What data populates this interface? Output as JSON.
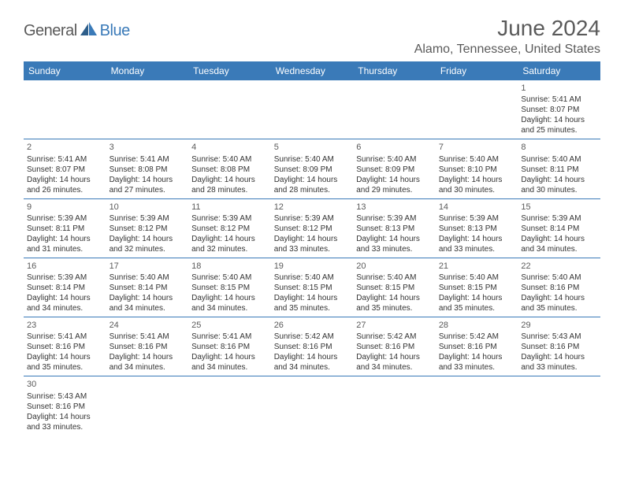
{
  "logo": {
    "general": "General",
    "blue": "Blue"
  },
  "title": "June 2024",
  "location": "Alamo, Tennessee, United States",
  "colors": {
    "header_bg": "#3a7ab8",
    "header_text": "#ffffff",
    "text": "#5a5a5a",
    "border": "#3a7ab8"
  },
  "day_headers": [
    "Sunday",
    "Monday",
    "Tuesday",
    "Wednesday",
    "Thursday",
    "Friday",
    "Saturday"
  ],
  "weeks": [
    [
      null,
      null,
      null,
      null,
      null,
      null,
      {
        "d": "1",
        "sr": "Sunrise: 5:41 AM",
        "ss": "Sunset: 8:07 PM",
        "dl": "Daylight: 14 hours and 25 minutes."
      }
    ],
    [
      {
        "d": "2",
        "sr": "Sunrise: 5:41 AM",
        "ss": "Sunset: 8:07 PM",
        "dl": "Daylight: 14 hours and 26 minutes."
      },
      {
        "d": "3",
        "sr": "Sunrise: 5:41 AM",
        "ss": "Sunset: 8:08 PM",
        "dl": "Daylight: 14 hours and 27 minutes."
      },
      {
        "d": "4",
        "sr": "Sunrise: 5:40 AM",
        "ss": "Sunset: 8:08 PM",
        "dl": "Daylight: 14 hours and 28 minutes."
      },
      {
        "d": "5",
        "sr": "Sunrise: 5:40 AM",
        "ss": "Sunset: 8:09 PM",
        "dl": "Daylight: 14 hours and 28 minutes."
      },
      {
        "d": "6",
        "sr": "Sunrise: 5:40 AM",
        "ss": "Sunset: 8:09 PM",
        "dl": "Daylight: 14 hours and 29 minutes."
      },
      {
        "d": "7",
        "sr": "Sunrise: 5:40 AM",
        "ss": "Sunset: 8:10 PM",
        "dl": "Daylight: 14 hours and 30 minutes."
      },
      {
        "d": "8",
        "sr": "Sunrise: 5:40 AM",
        "ss": "Sunset: 8:11 PM",
        "dl": "Daylight: 14 hours and 30 minutes."
      }
    ],
    [
      {
        "d": "9",
        "sr": "Sunrise: 5:39 AM",
        "ss": "Sunset: 8:11 PM",
        "dl": "Daylight: 14 hours and 31 minutes."
      },
      {
        "d": "10",
        "sr": "Sunrise: 5:39 AM",
        "ss": "Sunset: 8:12 PM",
        "dl": "Daylight: 14 hours and 32 minutes."
      },
      {
        "d": "11",
        "sr": "Sunrise: 5:39 AM",
        "ss": "Sunset: 8:12 PM",
        "dl": "Daylight: 14 hours and 32 minutes."
      },
      {
        "d": "12",
        "sr": "Sunrise: 5:39 AM",
        "ss": "Sunset: 8:12 PM",
        "dl": "Daylight: 14 hours and 33 minutes."
      },
      {
        "d": "13",
        "sr": "Sunrise: 5:39 AM",
        "ss": "Sunset: 8:13 PM",
        "dl": "Daylight: 14 hours and 33 minutes."
      },
      {
        "d": "14",
        "sr": "Sunrise: 5:39 AM",
        "ss": "Sunset: 8:13 PM",
        "dl": "Daylight: 14 hours and 33 minutes."
      },
      {
        "d": "15",
        "sr": "Sunrise: 5:39 AM",
        "ss": "Sunset: 8:14 PM",
        "dl": "Daylight: 14 hours and 34 minutes."
      }
    ],
    [
      {
        "d": "16",
        "sr": "Sunrise: 5:39 AM",
        "ss": "Sunset: 8:14 PM",
        "dl": "Daylight: 14 hours and 34 minutes."
      },
      {
        "d": "17",
        "sr": "Sunrise: 5:40 AM",
        "ss": "Sunset: 8:14 PM",
        "dl": "Daylight: 14 hours and 34 minutes."
      },
      {
        "d": "18",
        "sr": "Sunrise: 5:40 AM",
        "ss": "Sunset: 8:15 PM",
        "dl": "Daylight: 14 hours and 34 minutes."
      },
      {
        "d": "19",
        "sr": "Sunrise: 5:40 AM",
        "ss": "Sunset: 8:15 PM",
        "dl": "Daylight: 14 hours and 35 minutes."
      },
      {
        "d": "20",
        "sr": "Sunrise: 5:40 AM",
        "ss": "Sunset: 8:15 PM",
        "dl": "Daylight: 14 hours and 35 minutes."
      },
      {
        "d": "21",
        "sr": "Sunrise: 5:40 AM",
        "ss": "Sunset: 8:15 PM",
        "dl": "Daylight: 14 hours and 35 minutes."
      },
      {
        "d": "22",
        "sr": "Sunrise: 5:40 AM",
        "ss": "Sunset: 8:16 PM",
        "dl": "Daylight: 14 hours and 35 minutes."
      }
    ],
    [
      {
        "d": "23",
        "sr": "Sunrise: 5:41 AM",
        "ss": "Sunset: 8:16 PM",
        "dl": "Daylight: 14 hours and 35 minutes."
      },
      {
        "d": "24",
        "sr": "Sunrise: 5:41 AM",
        "ss": "Sunset: 8:16 PM",
        "dl": "Daylight: 14 hours and 34 minutes."
      },
      {
        "d": "25",
        "sr": "Sunrise: 5:41 AM",
        "ss": "Sunset: 8:16 PM",
        "dl": "Daylight: 14 hours and 34 minutes."
      },
      {
        "d": "26",
        "sr": "Sunrise: 5:42 AM",
        "ss": "Sunset: 8:16 PM",
        "dl": "Daylight: 14 hours and 34 minutes."
      },
      {
        "d": "27",
        "sr": "Sunrise: 5:42 AM",
        "ss": "Sunset: 8:16 PM",
        "dl": "Daylight: 14 hours and 34 minutes."
      },
      {
        "d": "28",
        "sr": "Sunrise: 5:42 AM",
        "ss": "Sunset: 8:16 PM",
        "dl": "Daylight: 14 hours and 33 minutes."
      },
      {
        "d": "29",
        "sr": "Sunrise: 5:43 AM",
        "ss": "Sunset: 8:16 PM",
        "dl": "Daylight: 14 hours and 33 minutes."
      }
    ],
    [
      {
        "d": "30",
        "sr": "Sunrise: 5:43 AM",
        "ss": "Sunset: 8:16 PM",
        "dl": "Daylight: 14 hours and 33 minutes."
      },
      null,
      null,
      null,
      null,
      null,
      null
    ]
  ]
}
